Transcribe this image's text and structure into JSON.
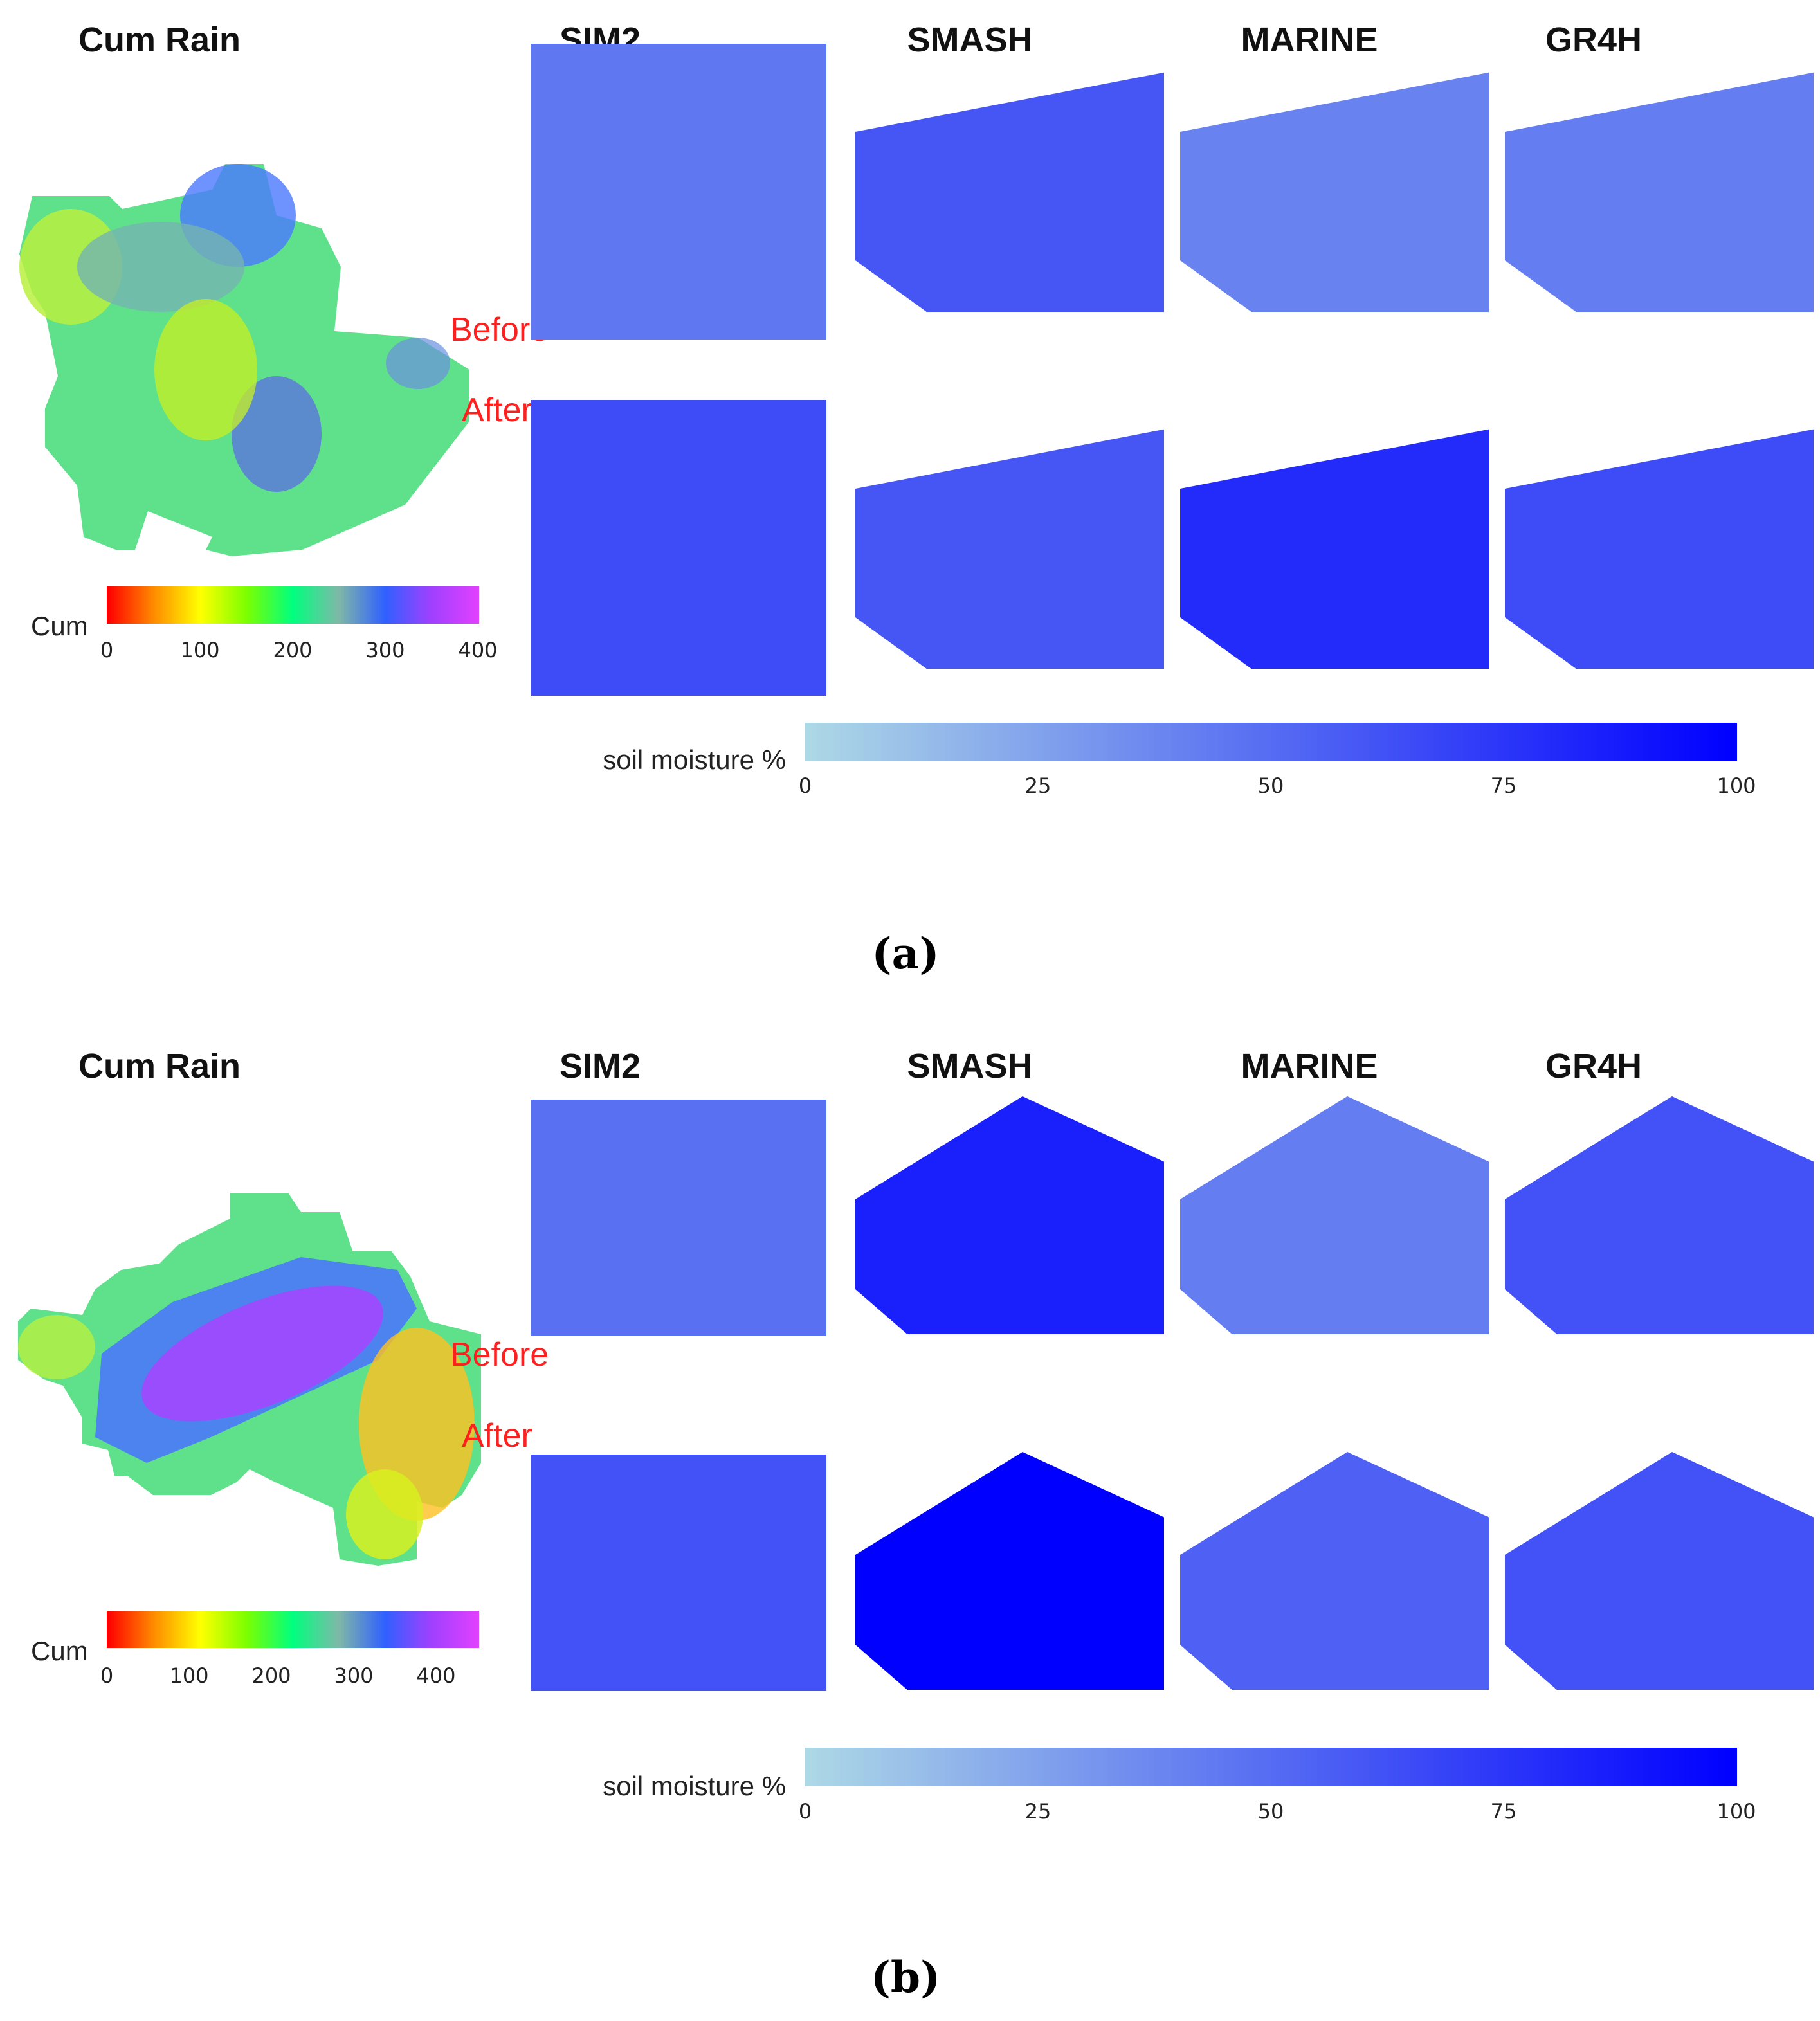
{
  "colors": {
    "sm_low": "#add8e6",
    "sm_high": "#0000ff",
    "rain_stops": [
      "#ff0000",
      "#ff8c00",
      "#ffff00",
      "#7cff00",
      "#00ff7f",
      "#7fb8a8",
      "#3060ff",
      "#a040ff",
      "#e040ff"
    ],
    "label_red": "#ff1f1f"
  },
  "panels": [
    {
      "caption": "(a)",
      "rain_title": "Cum Rain",
      "model_titles": [
        "SIM2",
        "SMASH",
        "MARINE",
        "GR4H"
      ],
      "before_label": "Before",
      "after_label": "After",
      "rain_legend": {
        "title": "Cum",
        "ticks": [
          "0",
          "100",
          "200",
          "300",
          "400"
        ],
        "range": [
          0,
          400
        ]
      },
      "sm_legend": {
        "title": "soil moisture %",
        "ticks": [
          "0",
          "25",
          "50",
          "75",
          "100"
        ]
      },
      "rain_field": {
        "low_region": "centre",
        "range": [
          130,
          330
        ]
      },
      "soil_moisture": {
        "before": {
          "SIM2": 45,
          "SMASH": 60,
          "MARINE": 40,
          "GR4H": 42
        },
        "after": {
          "SIM2": 65,
          "SMASH": 60,
          "MARINE": 80,
          "GR4H": 65
        }
      }
    },
    {
      "caption": "(b)",
      "rain_title": "Cum Rain",
      "model_titles": [
        "SIM2",
        "SMASH",
        "MARINE",
        "GR4H"
      ],
      "before_label": "Before",
      "after_label": "After",
      "rain_legend": {
        "title": "Cum",
        "ticks": [
          "0",
          "100",
          "200",
          "300",
          "400"
        ],
        "range": [
          0,
          450
        ]
      },
      "sm_legend": {
        "title": "soil moisture %",
        "ticks": [
          "0",
          "25",
          "50",
          "75",
          "100"
        ]
      },
      "rain_field": {
        "high_region": "band",
        "range": [
          90,
          420
        ]
      },
      "soil_moisture": {
        "before": {
          "SIM2": 48,
          "SMASH": 85,
          "MARINE": 42,
          "GR4H": 62
        },
        "after": {
          "SIM2": 62,
          "SMASH": 100,
          "MARINE": 55,
          "GR4H": 62
        }
      }
    }
  ]
}
